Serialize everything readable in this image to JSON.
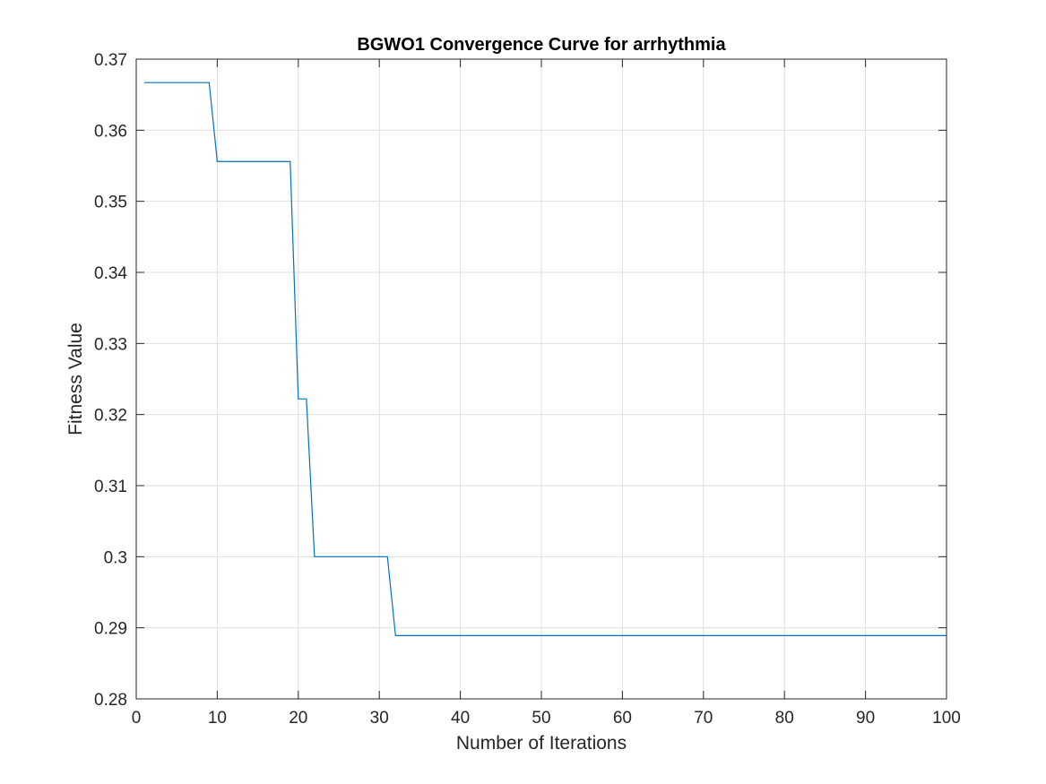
{
  "chart_data": {
    "type": "line",
    "title": "BGWO1 Convergence Curve for arrhythmia",
    "xlabel": "Number of Iterations",
    "ylabel": "Fitness Value",
    "xlim": [
      0,
      100
    ],
    "ylim": [
      0.28,
      0.37
    ],
    "xticks": [
      0,
      10,
      20,
      30,
      40,
      50,
      60,
      70,
      80,
      90,
      100
    ],
    "xtick_labels": [
      "0",
      "10",
      "20",
      "30",
      "40",
      "50",
      "60",
      "70",
      "80",
      "90",
      "100"
    ],
    "yticks": [
      0.28,
      0.29,
      0.3,
      0.31,
      0.32,
      0.33,
      0.34,
      0.35,
      0.36,
      0.37
    ],
    "ytick_labels": [
      "0.28",
      "0.29",
      "0.3",
      "0.31",
      "0.32",
      "0.33",
      "0.34",
      "0.35",
      "0.36",
      "0.37"
    ],
    "grid": true,
    "series": [
      {
        "color": "#0072BD",
        "x": [
          1,
          2,
          3,
          4,
          5,
          6,
          7,
          8,
          9,
          10,
          11,
          12,
          13,
          14,
          15,
          16,
          17,
          18,
          19,
          20,
          21,
          22,
          23,
          24,
          25,
          26,
          27,
          28,
          29,
          30,
          31,
          32,
          33,
          34,
          35,
          36,
          37,
          38,
          39,
          40,
          41,
          42,
          43,
          44,
          45,
          46,
          47,
          48,
          49,
          50,
          51,
          52,
          53,
          54,
          55,
          56,
          57,
          58,
          59,
          60,
          61,
          62,
          63,
          64,
          65,
          66,
          67,
          68,
          69,
          70,
          71,
          72,
          73,
          74,
          75,
          76,
          77,
          78,
          79,
          80,
          81,
          82,
          83,
          84,
          85,
          86,
          87,
          88,
          89,
          90,
          91,
          92,
          93,
          94,
          95,
          96,
          97,
          98,
          99,
          100
        ],
        "y": [
          0.3667,
          0.3667,
          0.3667,
          0.3667,
          0.3667,
          0.3667,
          0.3667,
          0.3667,
          0.3667,
          0.3556,
          0.3556,
          0.3556,
          0.3556,
          0.3556,
          0.3556,
          0.3556,
          0.3556,
          0.3556,
          0.3556,
          0.3222,
          0.3222,
          0.3,
          0.3,
          0.3,
          0.3,
          0.3,
          0.3,
          0.3,
          0.3,
          0.3,
          0.3,
          0.2889,
          0.2889,
          0.2889,
          0.2889,
          0.2889,
          0.2889,
          0.2889,
          0.2889,
          0.2889,
          0.2889,
          0.2889,
          0.2889,
          0.2889,
          0.2889,
          0.2889,
          0.2889,
          0.2889,
          0.2889,
          0.2889,
          0.2889,
          0.2889,
          0.2889,
          0.2889,
          0.2889,
          0.2889,
          0.2889,
          0.2889,
          0.2889,
          0.2889,
          0.2889,
          0.2889,
          0.2889,
          0.2889,
          0.2889,
          0.2889,
          0.2889,
          0.2889,
          0.2889,
          0.2889,
          0.2889,
          0.2889,
          0.2889,
          0.2889,
          0.2889,
          0.2889,
          0.2889,
          0.2889,
          0.2889,
          0.2889,
          0.2889,
          0.2889,
          0.2889,
          0.2889,
          0.2889,
          0.2889,
          0.2889,
          0.2889,
          0.2889,
          0.2889,
          0.2889,
          0.2889,
          0.2889,
          0.2889,
          0.2889,
          0.2889,
          0.2889,
          0.2889,
          0.2889,
          0.2889
        ]
      }
    ]
  }
}
